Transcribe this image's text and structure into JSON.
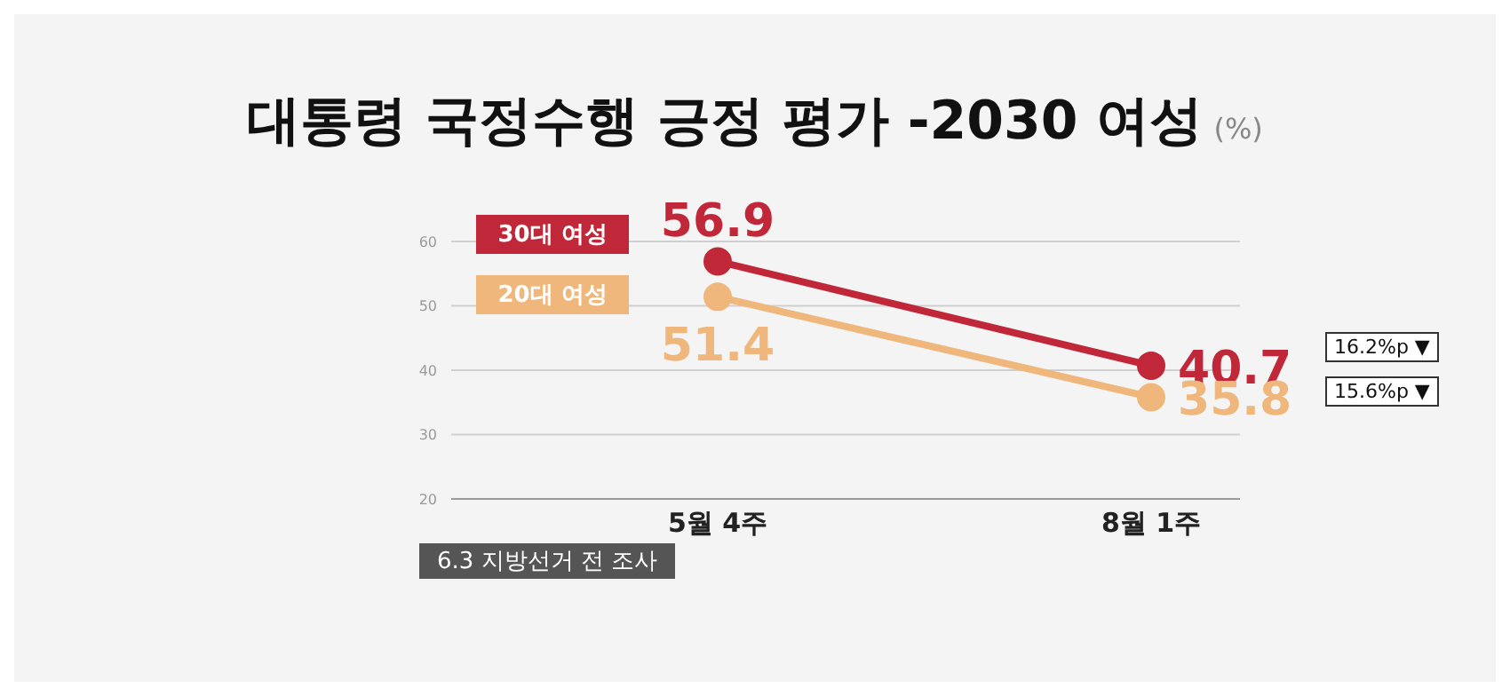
{
  "chart_data": {
    "type": "line",
    "title": "대통령 국정수행 긍정 평가 -2030 여성",
    "subtitle": "(%)",
    "categories": [
      "5월 4주",
      "8월 1주"
    ],
    "series": [
      {
        "name": "30대 여성",
        "color": "#c0283a",
        "values": [
          56.9,
          40.7
        ]
      },
      {
        "name": "20대 여성",
        "color": "#efb77c",
        "values": [
          51.4,
          35.8
        ]
      }
    ],
    "ylim": [
      20,
      60
    ],
    "yticks": [
      20,
      30,
      40,
      50,
      60
    ],
    "grid": "y",
    "legend": "left",
    "marker": "circle",
    "line_style": "solid",
    "data_labels": true,
    "annotations": [
      "16.2%p ▼",
      "15.6%p ▼",
      "6.3 지방선거 전 조사"
    ]
  }
}
